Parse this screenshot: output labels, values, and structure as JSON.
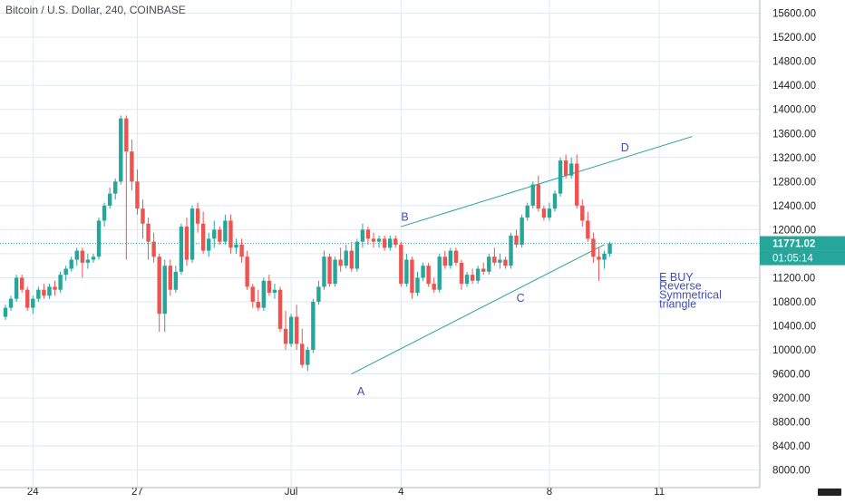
{
  "chart_title": "Bitcoin / U.S. Dollar, 240, COINBASE",
  "colors": {
    "up": "#26a69a",
    "down": "#ef5350",
    "grid": "#dbe9f3",
    "trendline": "#2aa198",
    "annotation": "#3f4fb5",
    "axis_text": "#222222",
    "last_price_bg": "#26a69a"
  },
  "chart_data": {
    "type": "candlestick",
    "title": "Bitcoin / U.S. Dollar, 240, COINBASE",
    "ylim": [
      7800,
      15800
    ],
    "y_ticks": [
      8000,
      8400,
      8800,
      9200,
      9600,
      10000,
      10400,
      10800,
      11200,
      11600,
      12000,
      12400,
      12800,
      13200,
      13600,
      14000,
      14400,
      14800,
      15200,
      15600
    ],
    "y_tick_labels": [
      "8000.00",
      "8400.00",
      "8800.00",
      "9200.00",
      "9600.00",
      "10000.00",
      "10400.00",
      "10800.00",
      "11200.00",
      "11600.00",
      "12000.00",
      "12400.00",
      "12800.00",
      "13200.00",
      "13600.00",
      "14000.00",
      "14400.00",
      "14800.00",
      "15200.00",
      "15600.00"
    ],
    "x_ticks": [
      {
        "label": "24",
        "bar": 5
      },
      {
        "label": "27",
        "bar": 24
      },
      {
        "label": "Jul",
        "bar": 52
      },
      {
        "label": "4",
        "bar": 72
      },
      {
        "label": "8",
        "bar": 99
      },
      {
        "label": "11",
        "bar": 119
      }
    ],
    "last_price": "11771.02",
    "countdown": "01:05:14",
    "candles": [
      [
        10550,
        10750,
        10500,
        10700
      ],
      [
        10700,
        10900,
        10650,
        10850
      ],
      [
        10850,
        11250,
        10800,
        11200
      ],
      [
        11200,
        11250,
        10950,
        11000
      ],
      [
        11000,
        11050,
        10650,
        10700
      ],
      [
        10700,
        10900,
        10600,
        10850
      ],
      [
        10850,
        11050,
        10800,
        11000
      ],
      [
        11000,
        11100,
        10850,
        10900
      ],
      [
        10900,
        11100,
        10850,
        11050
      ],
      [
        11050,
        11150,
        10900,
        11000
      ],
      [
        11000,
        11300,
        10950,
        11250
      ],
      [
        11250,
        11400,
        11150,
        11350
      ],
      [
        11350,
        11550,
        11300,
        11500
      ],
      [
        11500,
        11700,
        11400,
        11650
      ],
      [
        11650,
        11700,
        11200,
        11450
      ],
      [
        11450,
        11600,
        11350,
        11500
      ],
      [
        11500,
        11600,
        11450,
        11550
      ],
      [
        11550,
        12200,
        11500,
        12150
      ],
      [
        12150,
        12450,
        12050,
        12400
      ],
      [
        12400,
        12700,
        12350,
        12600
      ],
      [
        12600,
        12850,
        12500,
        12800
      ],
      [
        12800,
        13900,
        12750,
        13850
      ],
      [
        13850,
        13900,
        11500,
        13300
      ],
      [
        13300,
        13500,
        12650,
        12800
      ],
      [
        12800,
        13000,
        12250,
        12350
      ],
      [
        12350,
        12500,
        11850,
        12100
      ],
      [
        12100,
        12200,
        11500,
        11800
      ],
      [
        11800,
        11950,
        11450,
        11550
      ],
      [
        11550,
        11600,
        10300,
        10600
      ],
      [
        10600,
        11500,
        10300,
        11400
      ],
      [
        11400,
        11500,
        10900,
        11000
      ],
      [
        11000,
        11400,
        10950,
        11300
      ],
      [
        11300,
        12100,
        11250,
        12050
      ],
      [
        12050,
        12200,
        11400,
        11500
      ],
      [
        11500,
        12400,
        11450,
        12350
      ],
      [
        12350,
        12450,
        11950,
        12100
      ],
      [
        12100,
        12300,
        11600,
        11650
      ],
      [
        11650,
        11950,
        11550,
        11850
      ],
      [
        11850,
        12150,
        11700,
        12000
      ],
      [
        12000,
        12050,
        11750,
        11800
      ],
      [
        11800,
        12250,
        11750,
        12150
      ],
      [
        12150,
        12250,
        11600,
        11700
      ],
      [
        11700,
        11850,
        11600,
        11750
      ],
      [
        11750,
        11850,
        11450,
        11550
      ],
      [
        11550,
        11650,
        11000,
        11050
      ],
      [
        11050,
        11100,
        10700,
        10800
      ],
      [
        10800,
        11000,
        10650,
        10700
      ],
      [
        10700,
        11200,
        10650,
        11150
      ],
      [
        11150,
        11250,
        10900,
        10950
      ],
      [
        10950,
        11100,
        10850,
        11000
      ],
      [
        11000,
        11050,
        10300,
        10350
      ],
      [
        10350,
        10650,
        10000,
        10100
      ],
      [
        10100,
        10600,
        10050,
        10550
      ],
      [
        10550,
        10750,
        10000,
        10100
      ],
      [
        10100,
        10350,
        9700,
        9750
      ],
      [
        9750,
        10050,
        9650,
        10000
      ],
      [
        10000,
        10850,
        9950,
        10800
      ],
      [
        10800,
        11150,
        10750,
        11050
      ],
      [
        11050,
        11650,
        11000,
        11550
      ],
      [
        11550,
        11600,
        11050,
        11100
      ],
      [
        11100,
        11550,
        11050,
        11500
      ],
      [
        11500,
        11700,
        11300,
        11400
      ],
      [
        11400,
        11750,
        11350,
        11650
      ],
      [
        11650,
        11800,
        11300,
        11350
      ],
      [
        11350,
        11850,
        11300,
        11800
      ],
      [
        11800,
        12100,
        11700,
        12000
      ],
      [
        12000,
        12050,
        11750,
        11850
      ],
      [
        11850,
        11950,
        11700,
        11800
      ],
      [
        11800,
        11900,
        11700,
        11850
      ],
      [
        11850,
        11900,
        11650,
        11700
      ],
      [
        11700,
        11900,
        11650,
        11850
      ],
      [
        11850,
        11900,
        11700,
        11750
      ],
      [
        11750,
        11800,
        11050,
        11100
      ],
      [
        11100,
        11600,
        11050,
        11500
      ],
      [
        11500,
        11550,
        10850,
        10950
      ],
      [
        10950,
        11300,
        10900,
        11200
      ],
      [
        11200,
        11450,
        11150,
        11400
      ],
      [
        11400,
        11450,
        11050,
        11100
      ],
      [
        11100,
        11200,
        10950,
        11000
      ],
      [
        11000,
        11600,
        10950,
        11550
      ],
      [
        11550,
        11650,
        11350,
        11400
      ],
      [
        11400,
        11700,
        11350,
        11650
      ],
      [
        11650,
        11700,
        11400,
        11450
      ],
      [
        11450,
        11500,
        11000,
        11100
      ],
      [
        11100,
        11300,
        11050,
        11250
      ],
      [
        11250,
        11350,
        11100,
        11150
      ],
      [
        11150,
        11400,
        11100,
        11350
      ],
      [
        11350,
        11450,
        11250,
        11300
      ],
      [
        11300,
        11600,
        11250,
        11550
      ],
      [
        11550,
        11700,
        11400,
        11450
      ],
      [
        11450,
        11600,
        11350,
        11500
      ],
      [
        11500,
        11550,
        11350,
        11400
      ],
      [
        11400,
        11950,
        11350,
        11900
      ],
      [
        11900,
        12000,
        11700,
        11750
      ],
      [
        11750,
        12250,
        11700,
        12200
      ],
      [
        12200,
        12450,
        12150,
        12400
      ],
      [
        12400,
        12800,
        12350,
        12750
      ],
      [
        12750,
        12900,
        12300,
        12350
      ],
      [
        12350,
        12400,
        12150,
        12200
      ],
      [
        12200,
        12450,
        12150,
        12350
      ],
      [
        12350,
        12650,
        12300,
        12600
      ],
      [
        12600,
        13200,
        12550,
        13150
      ],
      [
        13150,
        13250,
        12850,
        12900
      ],
      [
        12900,
        13200,
        12850,
        13100
      ],
      [
        13100,
        13250,
        12350,
        12400
      ],
      [
        12400,
        12500,
        12050,
        12150
      ],
      [
        12150,
        12300,
        11800,
        11850
      ],
      [
        11850,
        11950,
        11450,
        11550
      ],
      [
        11550,
        11700,
        11150,
        11500
      ],
      [
        11500,
        11650,
        11350,
        11600
      ],
      [
        11600,
        11800,
        11550,
        11771
      ]
    ],
    "trendlines": [
      {
        "from": {
          "bar": 72,
          "price": 12050
        },
        "to": {
          "bar": 125,
          "price": 13550
        }
      },
      {
        "from": {
          "bar": 63,
          "price": 9600
        },
        "to": {
          "bar": 109,
          "price": 11750
        }
      }
    ],
    "annotations": [
      {
        "text": "A",
        "bar": 64,
        "price": 9250
      },
      {
        "text": "B",
        "bar": 72,
        "price": 12150
      },
      {
        "text": "C",
        "bar": 93,
        "price": 10800
      },
      {
        "text": "D",
        "bar": 112,
        "price": 13300
      },
      {
        "text": "E BUY",
        "bar": 119,
        "price": 11150
      },
      {
        "text": "Reverse",
        "bar": 119,
        "price": 11000
      },
      {
        "text": "Symmetrical",
        "bar": 119,
        "price": 10850
      },
      {
        "text": "triangle",
        "bar": 119,
        "price": 10700
      }
    ]
  }
}
